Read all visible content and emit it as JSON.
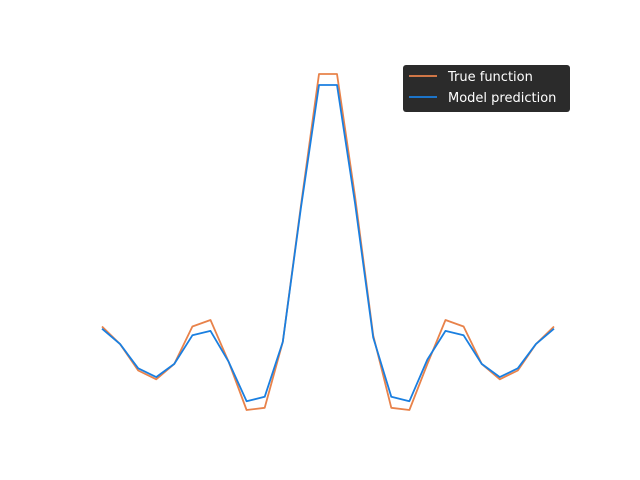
{
  "chart_data": {
    "type": "line",
    "x": [
      0,
      1,
      2,
      3,
      4,
      5,
      6,
      7,
      8,
      9,
      10,
      11,
      12,
      13,
      14,
      15,
      16,
      17,
      18,
      19,
      20,
      21,
      22,
      23,
      24,
      25
    ],
    "series": [
      {
        "name": "True function",
        "color": "#e8824a",
        "values": [
          0.06,
          -0.02,
          -0.14,
          -0.18,
          -0.11,
          0.06,
          0.09,
          -0.1,
          -0.32,
          -0.31,
          -0.01,
          0.61,
          1.21,
          1.21,
          0.65,
          0.02,
          -0.31,
          -0.32,
          -0.11,
          0.09,
          0.06,
          -0.11,
          -0.18,
          -0.14,
          -0.02,
          0.06
        ]
      },
      {
        "name": "Model prediction",
        "color": "#1a7fe0",
        "values": [
          0.05,
          -0.02,
          -0.13,
          -0.17,
          -0.11,
          0.02,
          0.04,
          -0.1,
          -0.28,
          -0.26,
          -0.01,
          0.6,
          1.16,
          1.16,
          0.62,
          0.01,
          -0.26,
          -0.28,
          -0.09,
          0.04,
          0.02,
          -0.11,
          -0.17,
          -0.13,
          -0.02,
          0.05
        ]
      }
    ],
    "xlim": [
      0,
      25
    ],
    "ylim": [
      -0.32,
      1.21
    ],
    "grid": false,
    "axes_visible": false,
    "legend_position": "top-right",
    "legend_style": "dark"
  }
}
